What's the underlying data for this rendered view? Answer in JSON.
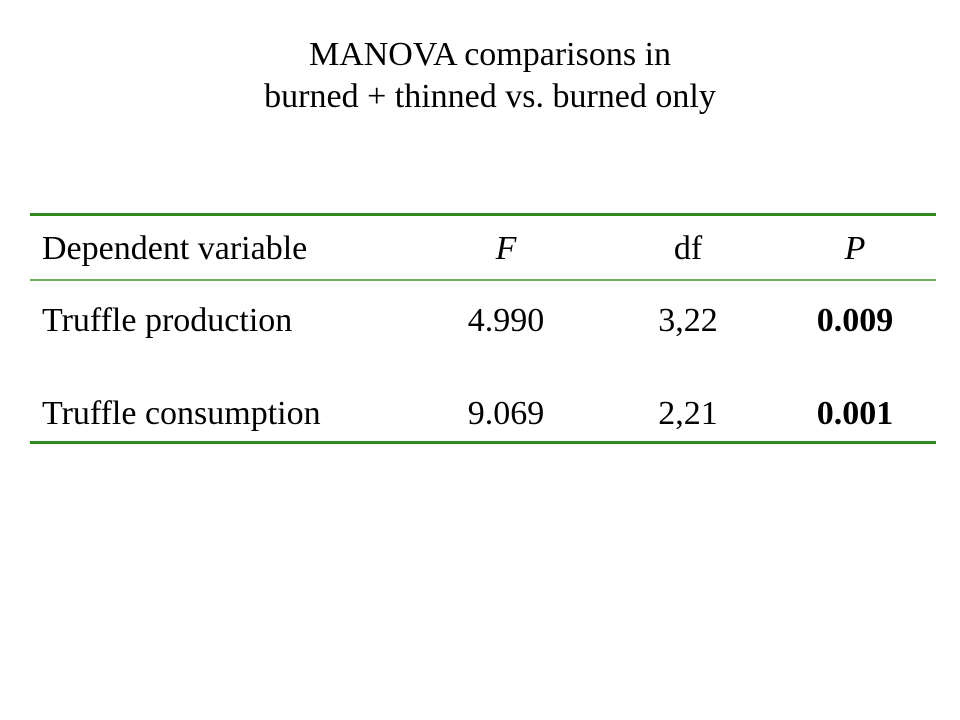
{
  "title": {
    "line1": "MANOVA comparisons in",
    "line2": "burned + thinned vs. burned only"
  },
  "table": {
    "headers": [
      "Dependent variable",
      "F",
      "df",
      "P"
    ],
    "rows": [
      [
        "Truffle production",
        "4.990",
        "3,22",
        "0.009"
      ],
      [
        "Truffle consumption",
        "9.069",
        "2,21",
        "0.001"
      ]
    ]
  },
  "colors": {
    "rule": "#2e8b1e",
    "rule_light": "#6cae5c"
  }
}
